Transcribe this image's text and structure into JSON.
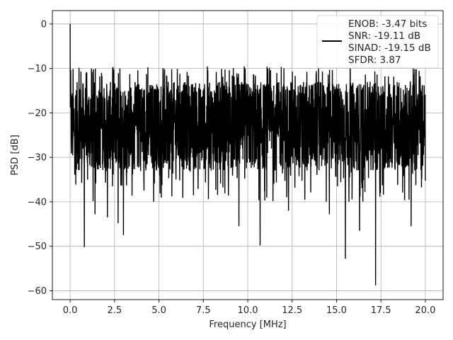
{
  "chart_data": {
    "type": "line",
    "title": "",
    "xlabel": "Frequency [MHz]",
    "ylabel": "PSD [dB]",
    "xlim": [
      -1.0,
      21.0
    ],
    "ylim": [
      -62.0,
      3.0
    ],
    "xticks": [
      0.0,
      2.5,
      5.0,
      7.5,
      10.0,
      12.5,
      15.0,
      17.5,
      20.0
    ],
    "xtick_labels": [
      "0.0",
      "2.5",
      "5.0",
      "7.5",
      "10.0",
      "12.5",
      "15.0",
      "17.5",
      "20.0"
    ],
    "yticks": [
      0,
      -10,
      -20,
      -30,
      -40,
      -50,
      -60
    ],
    "ytick_labels": [
      "0",
      "−10",
      "−20",
      "−30",
      "−40",
      "−50",
      "−60"
    ],
    "grid": true,
    "legend_position": "upper-right",
    "legend_lines": [
      "ENOB: -3.47 bits",
      "SNR: -19.11 dB",
      "SINAD: -19.15 dB",
      "SFDR: 3.87"
    ],
    "series": [
      {
        "color": "#000000",
        "x_range": [
          0.0,
          20.0
        ],
        "noise_floor_band": [
          -33.0,
          -13.0
        ],
        "peak": {
          "x": 0.0,
          "y": 0.0
        },
        "dips": [
          {
            "x": 0.8,
            "y": -50.2
          },
          {
            "x": 1.4,
            "y": -42.8
          },
          {
            "x": 2.1,
            "y": -43.5
          },
          {
            "x": 2.7,
            "y": -44.8
          },
          {
            "x": 3.0,
            "y": -47.5
          },
          {
            "x": 4.7,
            "y": -40.0
          },
          {
            "x": 9.5,
            "y": -45.5
          },
          {
            "x": 10.7,
            "y": -49.8
          },
          {
            "x": 12.3,
            "y": -42.0
          },
          {
            "x": 14.6,
            "y": -42.8
          },
          {
            "x": 15.5,
            "y": -52.8
          },
          {
            "x": 16.3,
            "y": -46.5
          },
          {
            "x": 17.2,
            "y": -58.8
          },
          {
            "x": 19.2,
            "y": -45.5
          }
        ]
      }
    ]
  }
}
